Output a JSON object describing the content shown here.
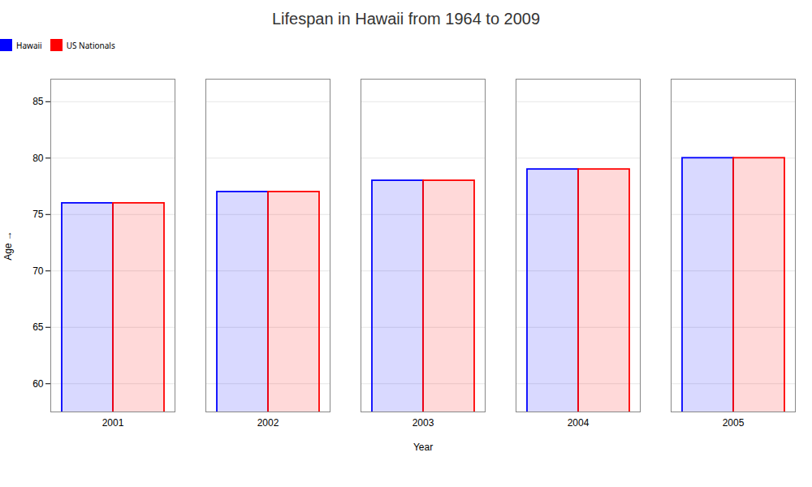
{
  "chart_data": {
    "type": "bar",
    "title": "Lifespan in Hawaii from 1964 to 2009",
    "xlabel": "Year",
    "ylabel": "Age",
    "categories": [
      "2001",
      "2002",
      "2003",
      "2004",
      "2005"
    ],
    "series": [
      {
        "name": "Hawaii",
        "color": "#0000ff",
        "values": [
          76,
          77,
          78,
          79,
          80
        ]
      },
      {
        "name": "US Nationals",
        "color": "#ff0000",
        "values": [
          76,
          77,
          78,
          79,
          80
        ]
      }
    ],
    "ylim": [
      57.5,
      87
    ],
    "yticks": [
      60,
      65,
      70,
      75,
      80,
      85
    ],
    "grid": true,
    "legend": "top"
  }
}
